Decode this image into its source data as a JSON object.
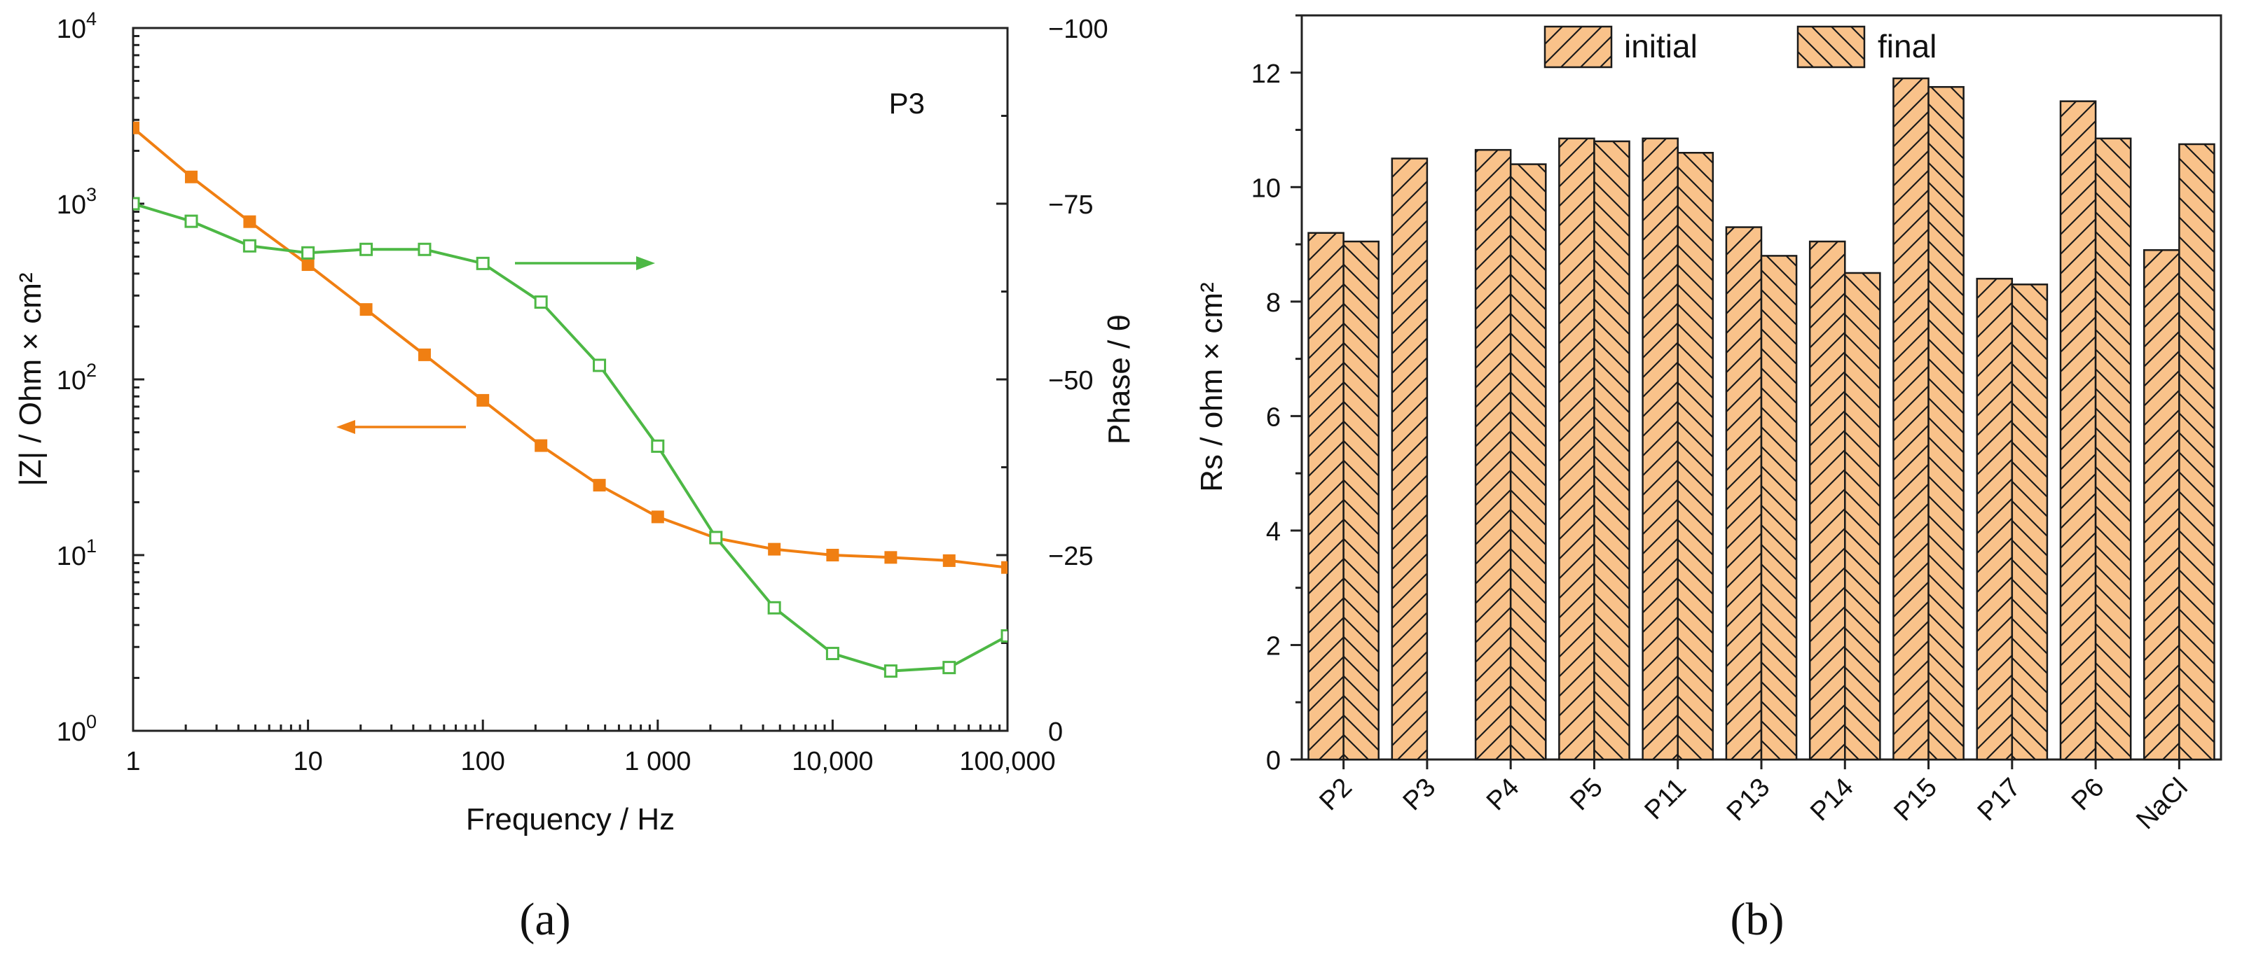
{
  "colors": {
    "impedance": "#f07f12",
    "phase": "#4db845",
    "bar_fill": "#f9c28a",
    "bar_stroke": "#1a1a1a"
  },
  "panel_a": {
    "caption": "(a)",
    "label": "P3",
    "right_ylabel": "Phase / θ"
  },
  "panel_b": {
    "caption": "(b)",
    "legend_initial": "initial",
    "legend_final": "final"
  },
  "chart_data": [
    {
      "type": "line",
      "title": "P3",
      "xlabel": "Frequency / Hz",
      "xscale": "log",
      "xlim": [
        1,
        100000
      ],
      "xticks": [
        1,
        10,
        100,
        1000,
        10000,
        100000
      ],
      "xtick_labels": [
        "1",
        "10",
        "100",
        "1 000",
        "10,000",
        "100,000"
      ],
      "ylabel": "|Z| / Ohm × cm²",
      "yscale": "log",
      "ylim": [
        1,
        10000
      ],
      "yticks": [
        1,
        10,
        100,
        1000,
        10000
      ],
      "ytick_base": "10",
      "ytick_exponents": [
        "0",
        "1",
        "2",
        "3",
        "4"
      ],
      "y2label": "Phase / θ",
      "y2lim": [
        0,
        -100
      ],
      "y2ticks": [
        0,
        -25,
        -50,
        -75,
        -100
      ],
      "y2tick_labels": [
        "0",
        "−25",
        "−50",
        "−75",
        "−100"
      ],
      "x": [
        1,
        2.15,
        4.64,
        10,
        21.5,
        46.4,
        100,
        215,
        464,
        1000,
        2150,
        4640,
        10000,
        21500,
        46400,
        100000
      ],
      "series": [
        {
          "name": "|Z|",
          "axis": "left",
          "marker": "filled-square",
          "values": [
            2700,
            1420,
            790,
            450,
            250,
            138,
            76,
            42,
            25,
            16.5,
            12.5,
            10.8,
            10.0,
            9.7,
            9.3,
            8.5
          ]
        },
        {
          "name": "Phase",
          "axis": "right",
          "marker": "open-square",
          "values": [
            -75,
            -72.5,
            -69,
            -68,
            -68.5,
            -68.5,
            -66.5,
            -61,
            -52,
            -40.5,
            -27.5,
            -17.5,
            -11,
            -8.5,
            -9,
            -13.5
          ]
        }
      ]
    },
    {
      "type": "bar",
      "ylabel": "Rs / ohm × cm²",
      "ylim": [
        0,
        13
      ],
      "yticks": [
        0,
        2,
        4,
        6,
        8,
        10,
        12
      ],
      "categories": [
        "P2",
        "P3",
        "P4",
        "P5",
        "P11",
        "P13",
        "P14",
        "P15",
        "P17",
        "P6",
        "NaCl"
      ],
      "series": [
        {
          "name": "initial",
          "hatch": "/",
          "values": [
            9.2,
            10.5,
            10.65,
            10.85,
            10.85,
            9.3,
            9.05,
            11.9,
            8.4,
            11.5,
            8.9
          ]
        },
        {
          "name": "final",
          "hatch": "\\",
          "values": [
            9.05,
            null,
            10.4,
            10.8,
            10.6,
            8.8,
            8.5,
            11.75,
            8.3,
            10.85,
            10.75
          ]
        }
      ]
    }
  ]
}
